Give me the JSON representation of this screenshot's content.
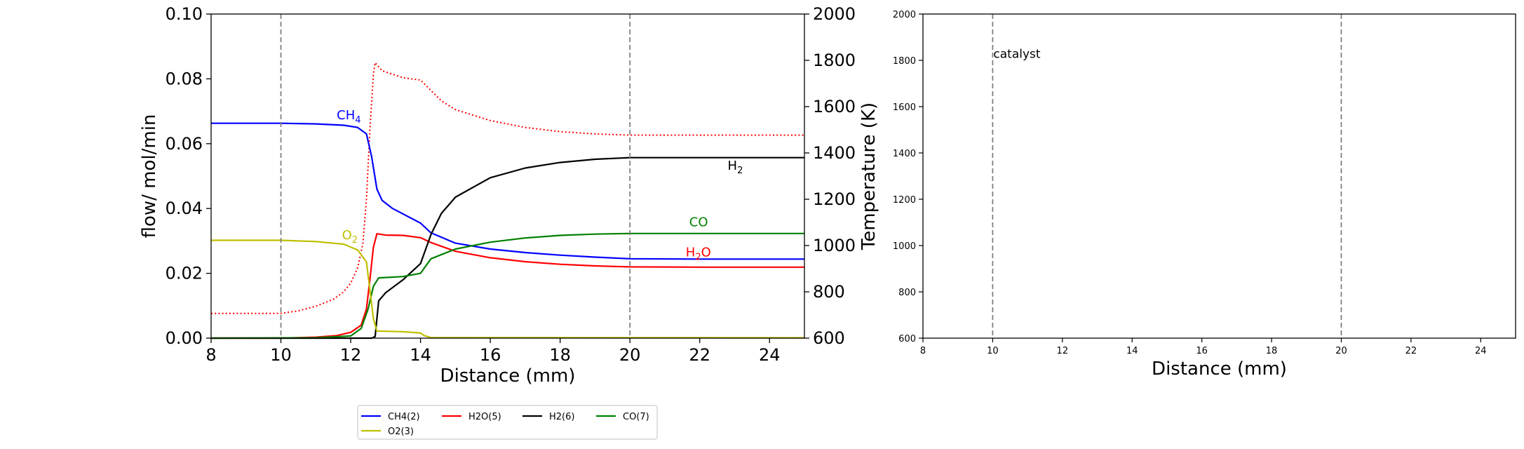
{
  "chart_data": [
    {
      "type": "line",
      "xlabel": "Distance (mm)",
      "ylabel": "flow/ mol/min",
      "y2label": "Temperature (K)",
      "xlim": [
        8,
        25
      ],
      "ylim": [
        0,
        0.1
      ],
      "y2lim": [
        600,
        2000
      ],
      "xticks": [
        "8",
        "10",
        "12",
        "14",
        "16",
        "18",
        "20",
        "22",
        "24"
      ],
      "yticks": [
        "0.00",
        "0.02",
        "0.04",
        "0.06",
        "0.08",
        "0.10"
      ],
      "y2ticks": [
        "600",
        "800",
        "1000",
        "1200",
        "1400",
        "1600",
        "1800",
        "2000"
      ],
      "vlines": [
        10,
        20
      ],
      "grid": false,
      "series": [
        {
          "name": "CH4(2)",
          "color": "#0000ff",
          "x": [
            8,
            10,
            11,
            11.8,
            12.2,
            12.45,
            12.6,
            12.75,
            12.9,
            13.2,
            14,
            14.3,
            15,
            16,
            17,
            18,
            19,
            20,
            22,
            25
          ],
          "y": [
            0.0663,
            0.0663,
            0.0661,
            0.0657,
            0.065,
            0.063,
            0.056,
            0.046,
            0.0425,
            0.04,
            0.0355,
            0.0325,
            0.0293,
            0.0275,
            0.0264,
            0.0256,
            0.025,
            0.0245,
            0.0244,
            0.0244
          ]
        },
        {
          "name": "H2O(5)",
          "color": "#ff0000",
          "x": [
            8,
            10,
            11,
            11.6,
            12,
            12.3,
            12.45,
            12.55,
            12.65,
            12.75,
            13,
            13.5,
            14,
            14.3,
            15,
            16,
            17,
            18,
            19,
            20,
            22,
            25
          ],
          "y": [
            0,
            0,
            0.0003,
            0.0008,
            0.0018,
            0.004,
            0.009,
            0.018,
            0.028,
            0.0322,
            0.0318,
            0.0317,
            0.031,
            0.0295,
            0.0268,
            0.0248,
            0.0236,
            0.0228,
            0.0223,
            0.022,
            0.0219,
            0.0219
          ]
        },
        {
          "name": "H2(6)",
          "color": "#000000",
          "x": [
            8,
            12.6,
            12.7,
            12.8,
            13,
            13.5,
            14,
            14.3,
            14.6,
            15,
            16,
            17,
            18,
            19,
            20,
            25
          ],
          "y": [
            0,
            0,
            0.0005,
            0.0115,
            0.014,
            0.018,
            0.023,
            0.032,
            0.0385,
            0.0435,
            0.0495,
            0.0525,
            0.0542,
            0.0552,
            0.0557,
            0.0557
          ]
        },
        {
          "name": "CO(7)",
          "color": "#008000",
          "x": [
            8,
            11,
            12,
            12.3,
            12.5,
            12.65,
            12.8,
            13.5,
            14,
            14.3,
            15,
            16,
            17,
            18,
            19,
            20,
            25
          ],
          "y": [
            0,
            0.0001,
            0.0007,
            0.003,
            0.009,
            0.016,
            0.0186,
            0.019,
            0.02,
            0.0245,
            0.0275,
            0.0296,
            0.0309,
            0.0317,
            0.0321,
            0.0323,
            0.0323
          ]
        },
        {
          "name": "O2(3)",
          "color": "#bfbf00",
          "x": [
            8,
            10,
            11,
            11.8,
            12.2,
            12.45,
            12.55,
            12.65,
            12.75,
            13.5,
            14,
            14.1,
            14.3,
            25
          ],
          "y": [
            0.0302,
            0.0302,
            0.0298,
            0.029,
            0.0272,
            0.0235,
            0.015,
            0.006,
            0.0022,
            0.002,
            0.0016,
            0.0008,
            0.0002,
            0.0001
          ]
        }
      ],
      "temperature": {
        "color": "#ff0000",
        "style": "dotted",
        "x": [
          8,
          10,
          10.5,
          11,
          11.5,
          11.8,
          12,
          12.2,
          12.35,
          12.45,
          12.55,
          12.65,
          12.7,
          12.9,
          13.5,
          14,
          14.2,
          14.6,
          15,
          16,
          17,
          18,
          19,
          20,
          25
        ],
        "y": [
          707,
          707,
          718,
          738,
          768,
          800,
          838,
          905,
          1010,
          1200,
          1500,
          1740,
          1790,
          1755,
          1725,
          1715,
          1685,
          1625,
          1587,
          1540,
          1510,
          1492,
          1482,
          1477,
          1477
        ]
      },
      "annotations": [
        {
          "base": "CH",
          "sub": "4",
          "x": 11.6,
          "y": 0.0675,
          "color": "#0000ff"
        },
        {
          "base": "O",
          "sub": "2",
          "x": 11.75,
          "y": 0.0305,
          "color": "#bfbf00"
        },
        {
          "base": "H",
          "sub": "2",
          "x": 22.8,
          "y": 0.052,
          "color": "#000000"
        },
        {
          "base": "CO",
          "sub": "",
          "x": 21.7,
          "y": 0.0345,
          "color": "#008000"
        },
        {
          "base": "H",
          "sub": "2",
          "tail": "O",
          "x": 21.6,
          "y": 0.0252,
          "color": "#ff0000"
        }
      ],
      "legend": {
        "placement": "below",
        "entries": [
          {
            "label": "CH4(2)",
            "color": "#0000ff"
          },
          {
            "label": "H2O(5)",
            "color": "#ff0000"
          },
          {
            "label": "H2(6)",
            "color": "#000000"
          },
          {
            "label": "CO(7)",
            "color": "#008000"
          },
          {
            "label": "O2(3)",
            "color": "#bfbf00"
          }
        ]
      }
    },
    {
      "type": "line",
      "xlabel": "Distance (mm)",
      "xlim": [
        8,
        25
      ],
      "ylim": [
        600,
        2000
      ],
      "xticks": [
        "8",
        "10",
        "12",
        "14",
        "16",
        "18",
        "20",
        "22",
        "24"
      ],
      "yticks": [
        "600",
        "800",
        "1000",
        "1200",
        "1400",
        "1600",
        "1800",
        "2000"
      ],
      "vlines": [
        10,
        20
      ],
      "grid": false,
      "annotation": "catalyst",
      "series": []
    }
  ]
}
